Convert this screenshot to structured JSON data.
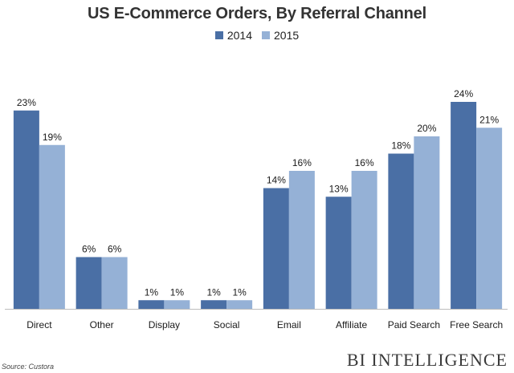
{
  "chart_data": {
    "type": "bar",
    "title": "US E-Commerce Orders, By Referral Channel",
    "categories": [
      "Direct",
      "Other",
      "Display",
      "Social",
      "Email",
      "Affiliate",
      "Paid Search",
      "Free Search"
    ],
    "series": [
      {
        "name": "2014",
        "values": [
          23,
          6,
          1,
          1,
          14,
          13,
          18,
          24
        ],
        "labels": [
          "23%",
          "6%",
          "1%",
          "1%",
          "14%",
          "13%",
          "18%",
          "24%"
        ],
        "color": "#4a6fa5"
      },
      {
        "name": "2015",
        "values": [
          19,
          6,
          1,
          1,
          16,
          16,
          20,
          21
        ],
        "labels": [
          "19%",
          "6%",
          "1%",
          "1%",
          "16%",
          "16%",
          "20%",
          "21%"
        ],
        "color": "#95b1d6"
      }
    ],
    "ylim": [
      0,
      24
    ],
    "grid": false,
    "legend_position": "top-center",
    "xlabel": "",
    "ylabel": ""
  },
  "footer": {
    "source": "Source: Custora",
    "brand": "BI INTELLIGENCE"
  }
}
